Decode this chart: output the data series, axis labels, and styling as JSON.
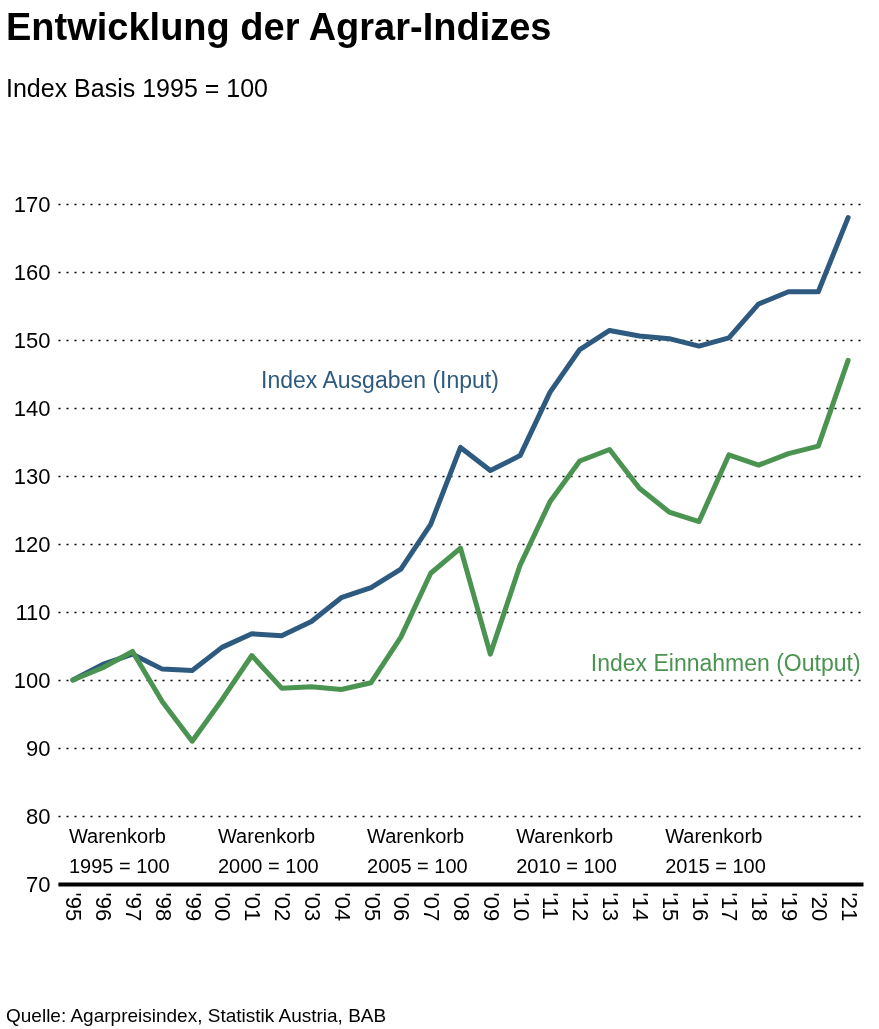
{
  "chart_data": {
    "type": "line",
    "title": "Entwicklung der Agrar-Indizes",
    "subtitle": "Index Basis 1995 = 100",
    "categories": [
      "'95",
      "'96",
      "'97",
      "'98",
      "'99",
      "'00",
      "'01",
      "'02",
      "'03",
      "'04",
      "'05",
      "'06",
      "'07",
      "'08",
      "'09",
      "'10",
      "'11",
      "'12",
      "'13",
      "'14",
      "'15",
      "'16",
      "'17",
      "'18",
      "'19",
      "'20",
      "'21"
    ],
    "series": [
      {
        "name": "Index Ausgaben (Input)",
        "color": "#2e5a80",
        "values": [
          100,
          102.3,
          103.8,
          101.6,
          101.4,
          104.8,
          106.8,
          106.5,
          108.6,
          112.1,
          113.6,
          116.3,
          122.9,
          134.2,
          130.8,
          133.0,
          142.3,
          148.6,
          151.4,
          150.6,
          150.2,
          149.1,
          150.3,
          155.3,
          157.1,
          157.1,
          168.0
        ]
      },
      {
        "name": "Index Einnahmen (Output)",
        "color": "#4a9350",
        "values": [
          100,
          101.8,
          104.2,
          96.8,
          91.0,
          97.1,
          103.6,
          98.8,
          99.0,
          98.6,
          99.6,
          106.3,
          115.7,
          119.4,
          103.8,
          116.9,
          126.2,
          132.2,
          133.9,
          128.2,
          124.7,
          123.3,
          133.1,
          131.6,
          133.3,
          134.4,
          147.0
        ]
      }
    ],
    "ylim": [
      70,
      170
    ],
    "yticks": [
      70,
      80,
      90,
      100,
      110,
      120,
      130,
      140,
      150,
      160,
      170
    ],
    "grid": "y",
    "legend": false,
    "line_style": "solid",
    "annotations": [
      "Warenkorb\n1995 = 100",
      "Warenkorb\n2000 = 100",
      "Warenkorb\n2005 = 100",
      "Warenkorb\n2010 = 100",
      "Warenkorb\n2015 = 100",
      "Quelle: Agarpreisindex, Statistik Austria, BAB"
    ]
  }
}
